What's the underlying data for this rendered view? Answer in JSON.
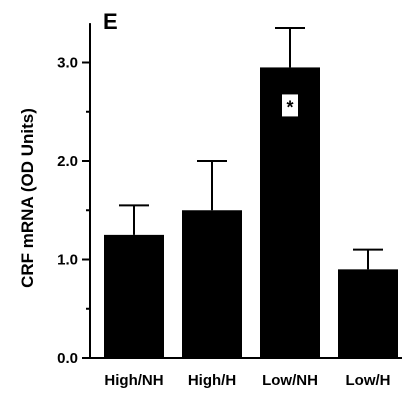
{
  "chart_data": {
    "type": "bar",
    "panel_label": "E",
    "ylabel": "CRF mRNA (OD Units)",
    "xlabel": "",
    "categories": [
      "High/NH",
      "High/H",
      "Low/NH",
      "Low/H"
    ],
    "values": [
      1.25,
      1.5,
      2.95,
      0.9
    ],
    "errors": [
      0.3,
      0.5,
      0.4,
      0.2
    ],
    "ylim": [
      0,
      3.4
    ],
    "yticks": [
      0.0,
      1.0,
      2.0,
      3.0
    ],
    "ytick_labels": [
      "0.0",
      "1.0",
      "2.0",
      "3.0"
    ],
    "minor_tick_step": 0.5,
    "grid": false,
    "bar_color": "#000000",
    "annotations": [
      {
        "category_index": 2,
        "text": "*"
      }
    ]
  }
}
